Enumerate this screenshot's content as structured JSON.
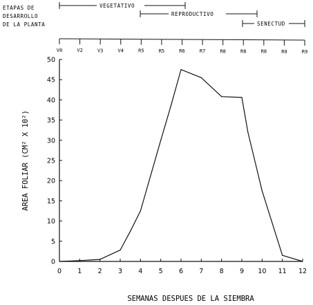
{
  "header": {
    "stages_title_lines": [
      "ETAPAS DE",
      "DESARROLLO",
      "DE LA PLANTA"
    ],
    "phases": [
      {
        "label": "VEGETATIVO",
        "start": "V0",
        "end": "R6"
      },
      {
        "label": "REPRODUCTIVO",
        "start": "R5",
        "end": "R8b"
      },
      {
        "label": "SENECTUD",
        "start": "R8c",
        "end": "R9b"
      }
    ],
    "stage_ticks": [
      "V0",
      "V2",
      "V3",
      "V4",
      "R5",
      "R5",
      "R6",
      "R7",
      "R8",
      "R8",
      "R8",
      "R9",
      "R9"
    ]
  },
  "chart_data": {
    "type": "line",
    "title": "",
    "xlabel": "SEMANAS DESPUES DE LA SIEMBRA",
    "ylabel": "AREA FOLIAR  (CM² X 10²)",
    "xlim": [
      0,
      12
    ],
    "ylim": [
      0,
      50
    ],
    "xticks": [
      0,
      1,
      2,
      3,
      4,
      5,
      6,
      7,
      8,
      9,
      10,
      11,
      12
    ],
    "yticks": [
      0,
      5,
      10,
      15,
      20,
      25,
      30,
      35,
      40,
      45,
      50
    ],
    "grid": false,
    "series": [
      {
        "x": [
          0,
          1,
          2,
          3,
          3.5,
          4,
          5,
          5.5,
          6,
          7,
          8,
          9,
          9.3,
          10,
          11,
          12
        ],
        "y": [
          0,
          0.2,
          0.5,
          2.8,
          7.5,
          12.5,
          30,
          38.5,
          47.5,
          45.5,
          40.8,
          40.6,
          32,
          17.5,
          1.5,
          0
        ]
      }
    ]
  }
}
